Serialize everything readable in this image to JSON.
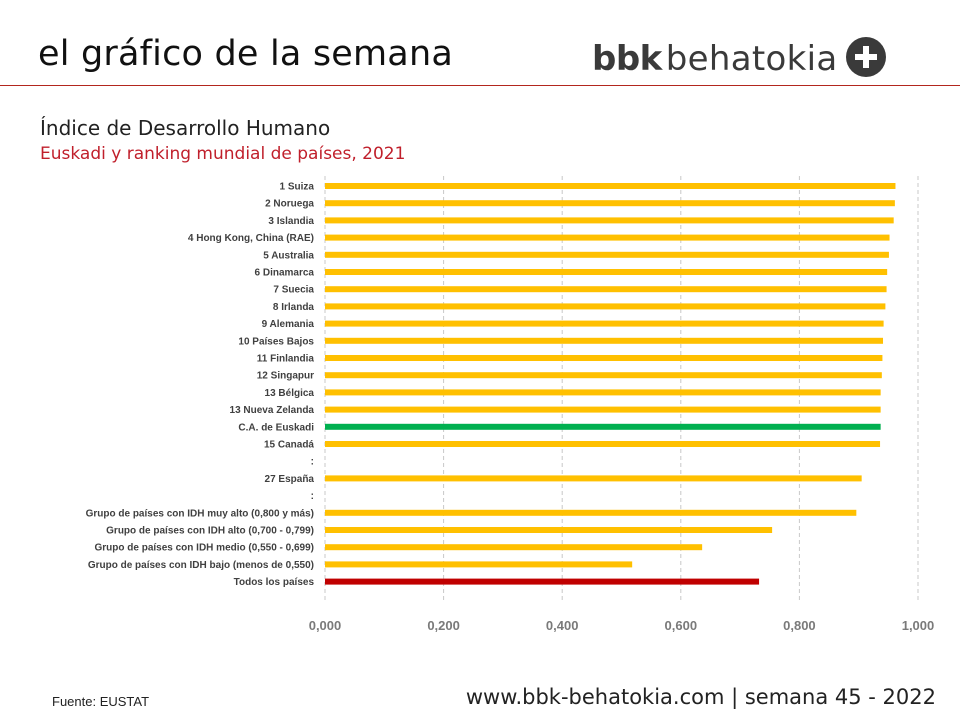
{
  "header": {
    "title": "el gráfico de la semana",
    "logo_bold": "bbk",
    "logo_light": "behatokia",
    "logo_icon": "plus-circle-icon"
  },
  "colors": {
    "accent_red": "#c01f2b",
    "bar_default": "#ffc000",
    "bar_euskadi": "#00b050",
    "bar_total": "#c00000"
  },
  "footer": {
    "source": "Fuente: EUSTAT",
    "url": "www.bbk-behatokia.com | semana 45 - 2022"
  },
  "chart_data": {
    "type": "bar",
    "orientation": "horizontal",
    "title": "Índice de Desarrollo Humano",
    "subtitle": "Euskadi y ranking mundial de países, 2021",
    "categories": [
      "1 Suiza",
      "2 Noruega",
      "3 Islandia",
      "4 Hong Kong, China (RAE)",
      "5 Australia",
      "6 Dinamarca",
      "7 Suecia",
      "8 Irlanda",
      "9 Alemania",
      "10 Países Bajos",
      "11 Finlandia",
      "12 Singapur",
      "13 Bélgica",
      "13 Nueva Zelanda",
      "C.A. de Euskadi",
      "15 Canadá",
      ":",
      "27 España",
      ":",
      "Grupo de países con IDH muy alto (0,800 y más)",
      "Grupo de países con IDH  alto (0,700 - 0,799)",
      "Grupo de países con IDH medio (0,550 - 0,699)",
      "Grupo de países con IDH bajo (menos de 0,550)",
      "Todos los países"
    ],
    "values": [
      0.962,
      0.961,
      0.959,
      0.952,
      0.951,
      0.948,
      0.947,
      0.945,
      0.942,
      0.941,
      0.94,
      0.939,
      0.937,
      0.937,
      0.937,
      0.936,
      null,
      0.905,
      null,
      0.896,
      0.754,
      0.636,
      0.518,
      0.732
    ],
    "highlight": {
      "C.A. de Euskadi": "green",
      "Todos los países": "red"
    },
    "xlim": [
      0,
      1
    ],
    "xticks": [
      "0,000",
      "0,200",
      "0,400",
      "0,600",
      "0,800",
      "1,000"
    ],
    "xtick_values": [
      0,
      0.2,
      0.4,
      0.6,
      0.8,
      1.0
    ],
    "grid": "vertical dashed"
  }
}
